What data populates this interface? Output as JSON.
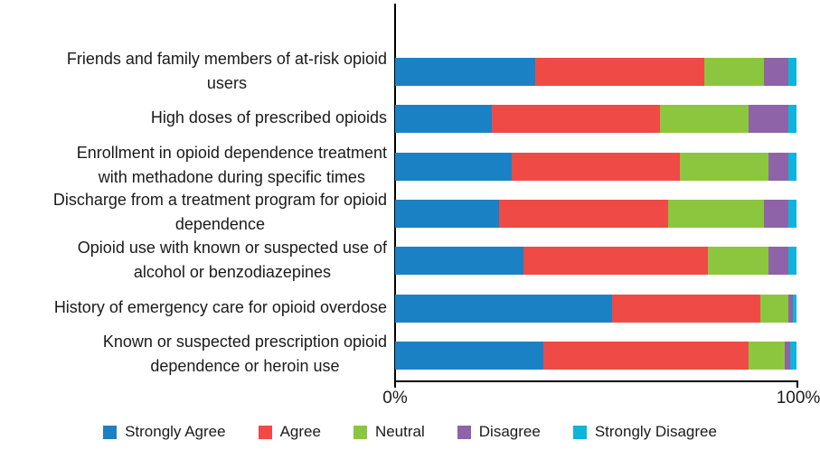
{
  "chart_data": {
    "type": "bar",
    "orientation": "horizontal",
    "stacked": true,
    "unit": "percent",
    "title": "",
    "xlabel": "",
    "ylabel": "",
    "xlim": [
      0,
      100
    ],
    "x_tick_labels": [
      "0%",
      "100%"
    ],
    "grid": false,
    "legend_position": "bottom",
    "series": [
      {
        "name": "Strongly Agree",
        "color": "#1B81C5"
      },
      {
        "name": "Agree",
        "color": "#EF4A45"
      },
      {
        "name": "Neutral",
        "color": "#8CC63E"
      },
      {
        "name": "Disagree",
        "color": "#8E63A8"
      },
      {
        "name": "Strongly Disagree",
        "color": "#0EB4DB"
      }
    ],
    "categories": [
      "Friends and family members of at-risk opioid users",
      "High doses of prescribed opioids",
      "Enrollment in opioid dependence treatment with methadone during specific times",
      "Discharge from a treatment program for opioid dependence",
      "Opioid use with known or suspected use of alcohol or benzodiazepines",
      "History of emergency care for opioid overdose",
      "Known or suspected prescription opioid dependence or heroin use"
    ],
    "rows": [
      {
        "label_lines": [
          "Friends and family members of at-risk opioid",
          "users"
        ],
        "values": [
          35,
          42,
          15,
          6,
          2
        ]
      },
      {
        "label_lines": [
          "High doses of prescribed opioids"
        ],
        "values": [
          24,
          42,
          22,
          10,
          2
        ]
      },
      {
        "label_lines": [
          "Enrollment in opioid dependence treatment",
          "with methadone during specific times"
        ],
        "values": [
          29,
          42,
          22,
          5,
          2
        ]
      },
      {
        "label_lines": [
          "Discharge from a treatment program for opioid",
          "dependence"
        ],
        "values": [
          26,
          42,
          24,
          6,
          2
        ]
      },
      {
        "label_lines": [
          "Opioid use with known or suspected use of",
          "alcohol or benzodiazepines"
        ],
        "values": [
          32,
          46,
          15,
          5,
          2
        ]
      },
      {
        "label_lines": [
          "History of emergency care for opioid overdose"
        ],
        "values": [
          54,
          37,
          7,
          1,
          1
        ]
      },
      {
        "label_lines": [
          "Known or suspected prescription opioid",
          "dependence or heroin use"
        ],
        "values": [
          37,
          51,
          9,
          1.5,
          1.5
        ]
      }
    ]
  },
  "axis": {
    "x_min_label": "0%",
    "x_max_label": "100%"
  }
}
